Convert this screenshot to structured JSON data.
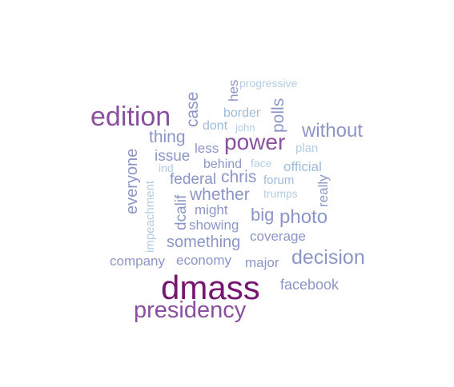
{
  "palette": {
    "darkest": "#76166e",
    "dark": "#8a4f9e",
    "mid": "#8c96c6",
    "light": "#9ebcda",
    "pale": "#b3cde3"
  },
  "words": [
    {
      "text": "dmass"
    },
    {
      "text": "presidency"
    },
    {
      "text": "edition"
    },
    {
      "text": "power"
    },
    {
      "text": "decision"
    },
    {
      "text": "without"
    },
    {
      "text": "photo"
    },
    {
      "text": "facebook"
    },
    {
      "text": "whether"
    },
    {
      "text": "something"
    },
    {
      "text": "big"
    },
    {
      "text": "chris"
    },
    {
      "text": "thing"
    },
    {
      "text": "case"
    },
    {
      "text": "polls"
    },
    {
      "text": "everyone"
    },
    {
      "text": "federal"
    },
    {
      "text": "issue"
    },
    {
      "text": "coverage"
    },
    {
      "text": "economy"
    },
    {
      "text": "major"
    },
    {
      "text": "company"
    },
    {
      "text": "showing"
    },
    {
      "text": "might"
    },
    {
      "text": "dcalif"
    },
    {
      "text": "less"
    },
    {
      "text": "behind"
    },
    {
      "text": "official"
    },
    {
      "text": "really"
    },
    {
      "text": "hes"
    },
    {
      "text": "dont"
    },
    {
      "text": "border"
    },
    {
      "text": "forum"
    },
    {
      "text": "plan"
    },
    {
      "text": "impeachment"
    },
    {
      "text": "progressive"
    },
    {
      "text": "john"
    },
    {
      "text": "face"
    },
    {
      "text": "trumps"
    },
    {
      "text": "ind"
    }
  ]
}
